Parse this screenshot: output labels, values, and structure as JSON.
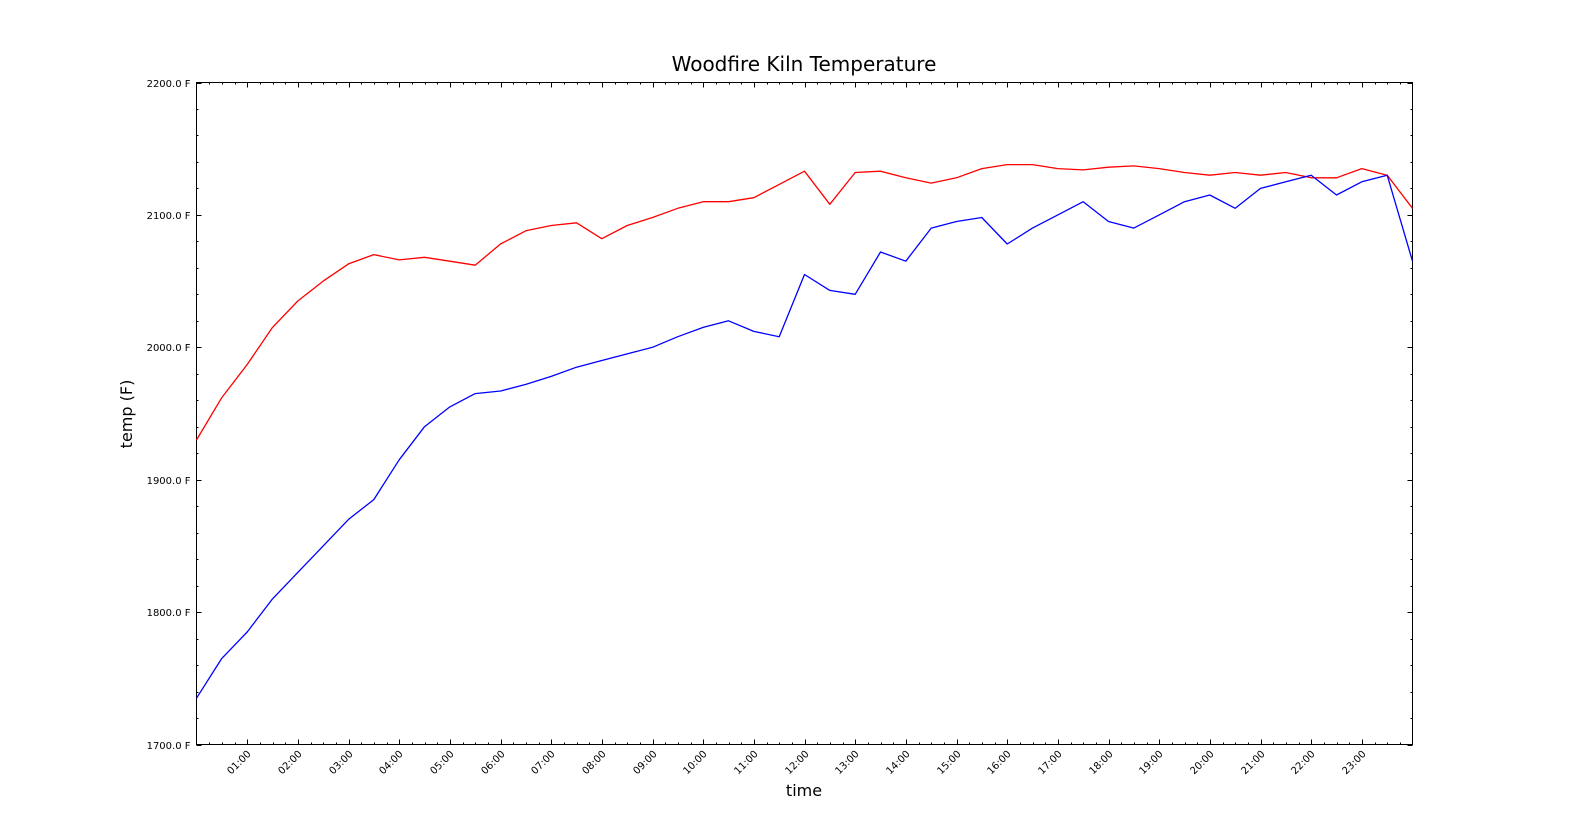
{
  "chart_data": {
    "type": "line",
    "title": "Woodfire Kiln Temperature",
    "xlabel": "time",
    "ylabel": "temp (F)",
    "ylim": [
      1700,
      2200
    ],
    "y_unit_suffix": " F",
    "yticks": [
      1700,
      1800,
      1900,
      2000,
      2100,
      2200
    ],
    "ytick_labels": [
      "1700.0 F",
      "1800.0 F",
      "1900.0 F",
      "2000.0 F",
      "2100.0 F",
      "2200.0 F"
    ],
    "xlim": [
      "00:00",
      "24:00"
    ],
    "xtick_labels": [
      "01:00",
      "02:00",
      "03:00",
      "04:00",
      "05:00",
      "06:00",
      "07:00",
      "08:00",
      "09:00",
      "10:00",
      "11:00",
      "12:00",
      "13:00",
      "14:00",
      "15:00",
      "16:00",
      "17:00",
      "18:00",
      "19:00",
      "20:00",
      "21:00",
      "22:00",
      "23:00"
    ],
    "grid": false,
    "legend": "none",
    "x": [
      "00:00",
      "00:30",
      "01:00",
      "01:30",
      "02:00",
      "02:30",
      "03:00",
      "03:30",
      "04:00",
      "04:30",
      "05:00",
      "05:30",
      "06:00",
      "06:30",
      "07:00",
      "07:30",
      "08:00",
      "08:30",
      "09:00",
      "09:30",
      "10:00",
      "10:30",
      "11:00",
      "11:30",
      "12:00",
      "12:30",
      "13:00",
      "13:30",
      "14:00",
      "14:30",
      "15:00",
      "15:30",
      "16:00",
      "16:30",
      "17:00",
      "17:30",
      "18:00",
      "18:30",
      "19:00",
      "19:30",
      "20:00",
      "20:30",
      "21:00",
      "21:30",
      "22:00",
      "22:30",
      "23:00",
      "23:30",
      "24:00"
    ],
    "series": [
      {
        "color": "#ff0000",
        "values": [
          1930,
          1962,
          1987,
          2015,
          2035,
          2050,
          2063,
          2070,
          2066,
          2068,
          2065,
          2062,
          2078,
          2088,
          2092,
          2094,
          2082,
          2092,
          2098,
          2105,
          2110,
          2110,
          2113,
          2123,
          2133,
          2108,
          2132,
          2133,
          2128,
          2124,
          2128,
          2135,
          2138,
          2138,
          2135,
          2134,
          2136,
          2137,
          2135,
          2132,
          2130,
          2132,
          2130,
          2132,
          2128,
          2128,
          2135,
          2130,
          2105
        ]
      },
      {
        "color": "#0000ff",
        "values": [
          1735,
          1765,
          1785,
          1810,
          1830,
          1850,
          1870,
          1885,
          1915,
          1940,
          1955,
          1965,
          1967,
          1972,
          1978,
          1985,
          1990,
          1995,
          2000,
          2008,
          2015,
          2020,
          2012,
          2008,
          2055,
          2043,
          2040,
          2072,
          2065,
          2090,
          2095,
          2098,
          2078,
          2090,
          2100,
          2110,
          2095,
          2090,
          2100,
          2110,
          2115,
          2105,
          2120,
          2125,
          2130,
          2115,
          2125,
          2130,
          2065
        ]
      }
    ]
  }
}
